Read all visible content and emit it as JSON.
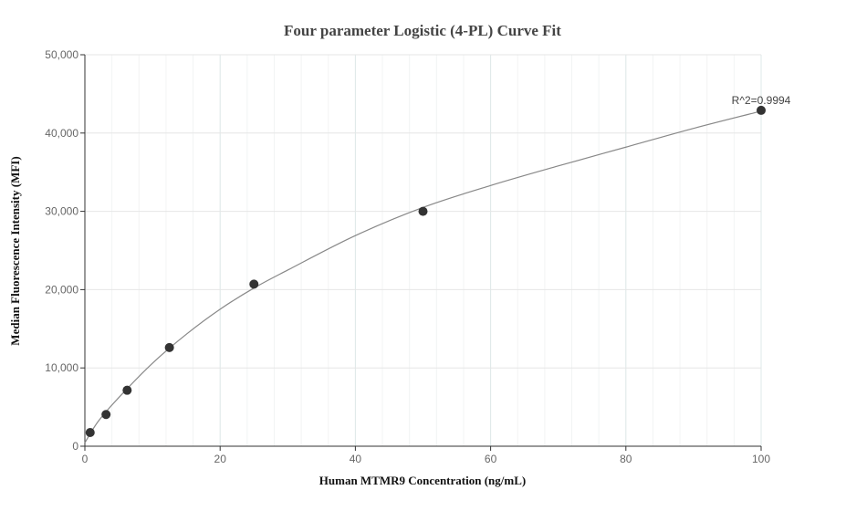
{
  "chart_data": {
    "type": "scatter",
    "title": "Four parameter Logistic (4-PL) Curve Fit",
    "xlabel": "Human MTMR9 Concentration (ng/mL)",
    "ylabel": "Median Fluorescence Intensity (MFI)",
    "xlim": [
      0,
      100
    ],
    "ylim": [
      0,
      50000
    ],
    "x_ticks": [
      0,
      20,
      40,
      60,
      80,
      100
    ],
    "x_tick_labels": [
      "0",
      "20",
      "40",
      "60",
      "80",
      "100"
    ],
    "y_ticks": [
      0,
      10000,
      20000,
      30000,
      40000,
      50000
    ],
    "y_tick_labels": [
      "0",
      "10,000",
      "20,000",
      "30,000",
      "40,000",
      "50,000"
    ],
    "grid": true,
    "series": [
      {
        "points": [
          {
            "x": 0.78,
            "y": 1750
          },
          {
            "x": 3.13,
            "y": 4050
          },
          {
            "x": 6.25,
            "y": 7150
          },
          {
            "x": 12.5,
            "y": 12600
          },
          {
            "x": 25,
            "y": 20700
          },
          {
            "x": 50,
            "y": 30000
          },
          {
            "x": 100,
            "y": 42900
          }
        ]
      }
    ],
    "fit_curve": {
      "points": [
        {
          "x": 0,
          "y": 450
        },
        {
          "x": 2,
          "y": 3200
        },
        {
          "x": 5,
          "y": 6200
        },
        {
          "x": 10,
          "y": 10600
        },
        {
          "x": 15,
          "y": 14300
        },
        {
          "x": 20,
          "y": 17500
        },
        {
          "x": 25,
          "y": 20200
        },
        {
          "x": 30,
          "y": 22500
        },
        {
          "x": 40,
          "y": 26900
        },
        {
          "x": 50,
          "y": 30500
        },
        {
          "x": 60,
          "y": 33300
        },
        {
          "x": 70,
          "y": 35800
        },
        {
          "x": 80,
          "y": 38200
        },
        {
          "x": 90,
          "y": 40600
        },
        {
          "x": 100,
          "y": 42800
        }
      ]
    },
    "annotation": "R^2=0.9994",
    "colors": {
      "point": "#333333",
      "curve": "#888888",
      "grid": "#e6e6e6",
      "axis": "#333333"
    }
  }
}
